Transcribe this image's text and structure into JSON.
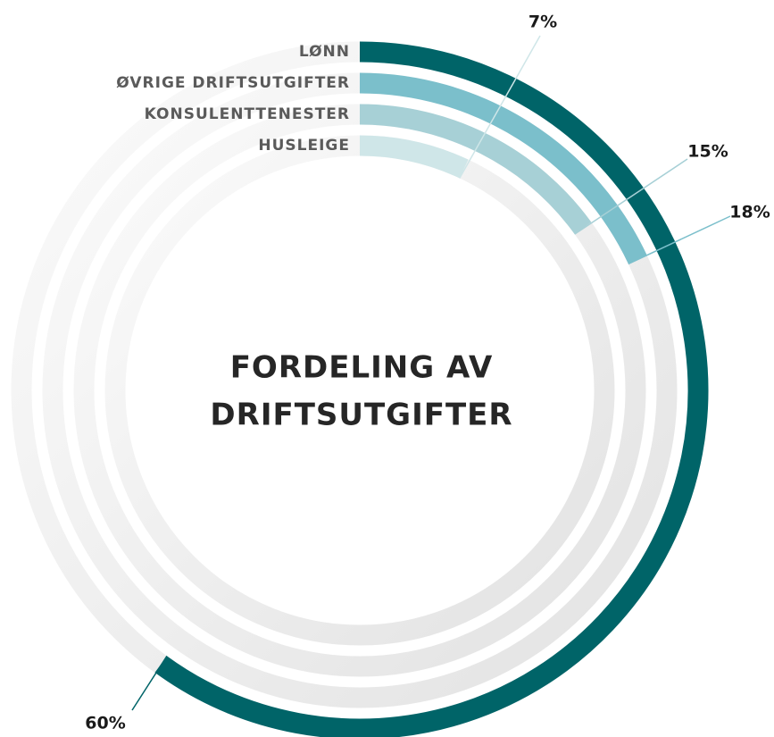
{
  "chart_data": {
    "type": "radial-bar",
    "title": [
      "FORDELING AV",
      "DRIFTSUTGIFTER"
    ],
    "categories": [
      "LØNN",
      "ØVRIGE DRIFTSUTGIFTER",
      "KONSULENTTENESTER",
      "HUSLEIGE"
    ],
    "values": [
      60,
      18,
      15,
      7
    ],
    "value_labels": [
      "60%",
      "18%",
      "15%",
      "7%"
    ],
    "colors": [
      "#006468",
      "#7bbfcb",
      "#a7d0d6",
      "#cfe6e8"
    ],
    "ylim": [
      0,
      100
    ]
  }
}
